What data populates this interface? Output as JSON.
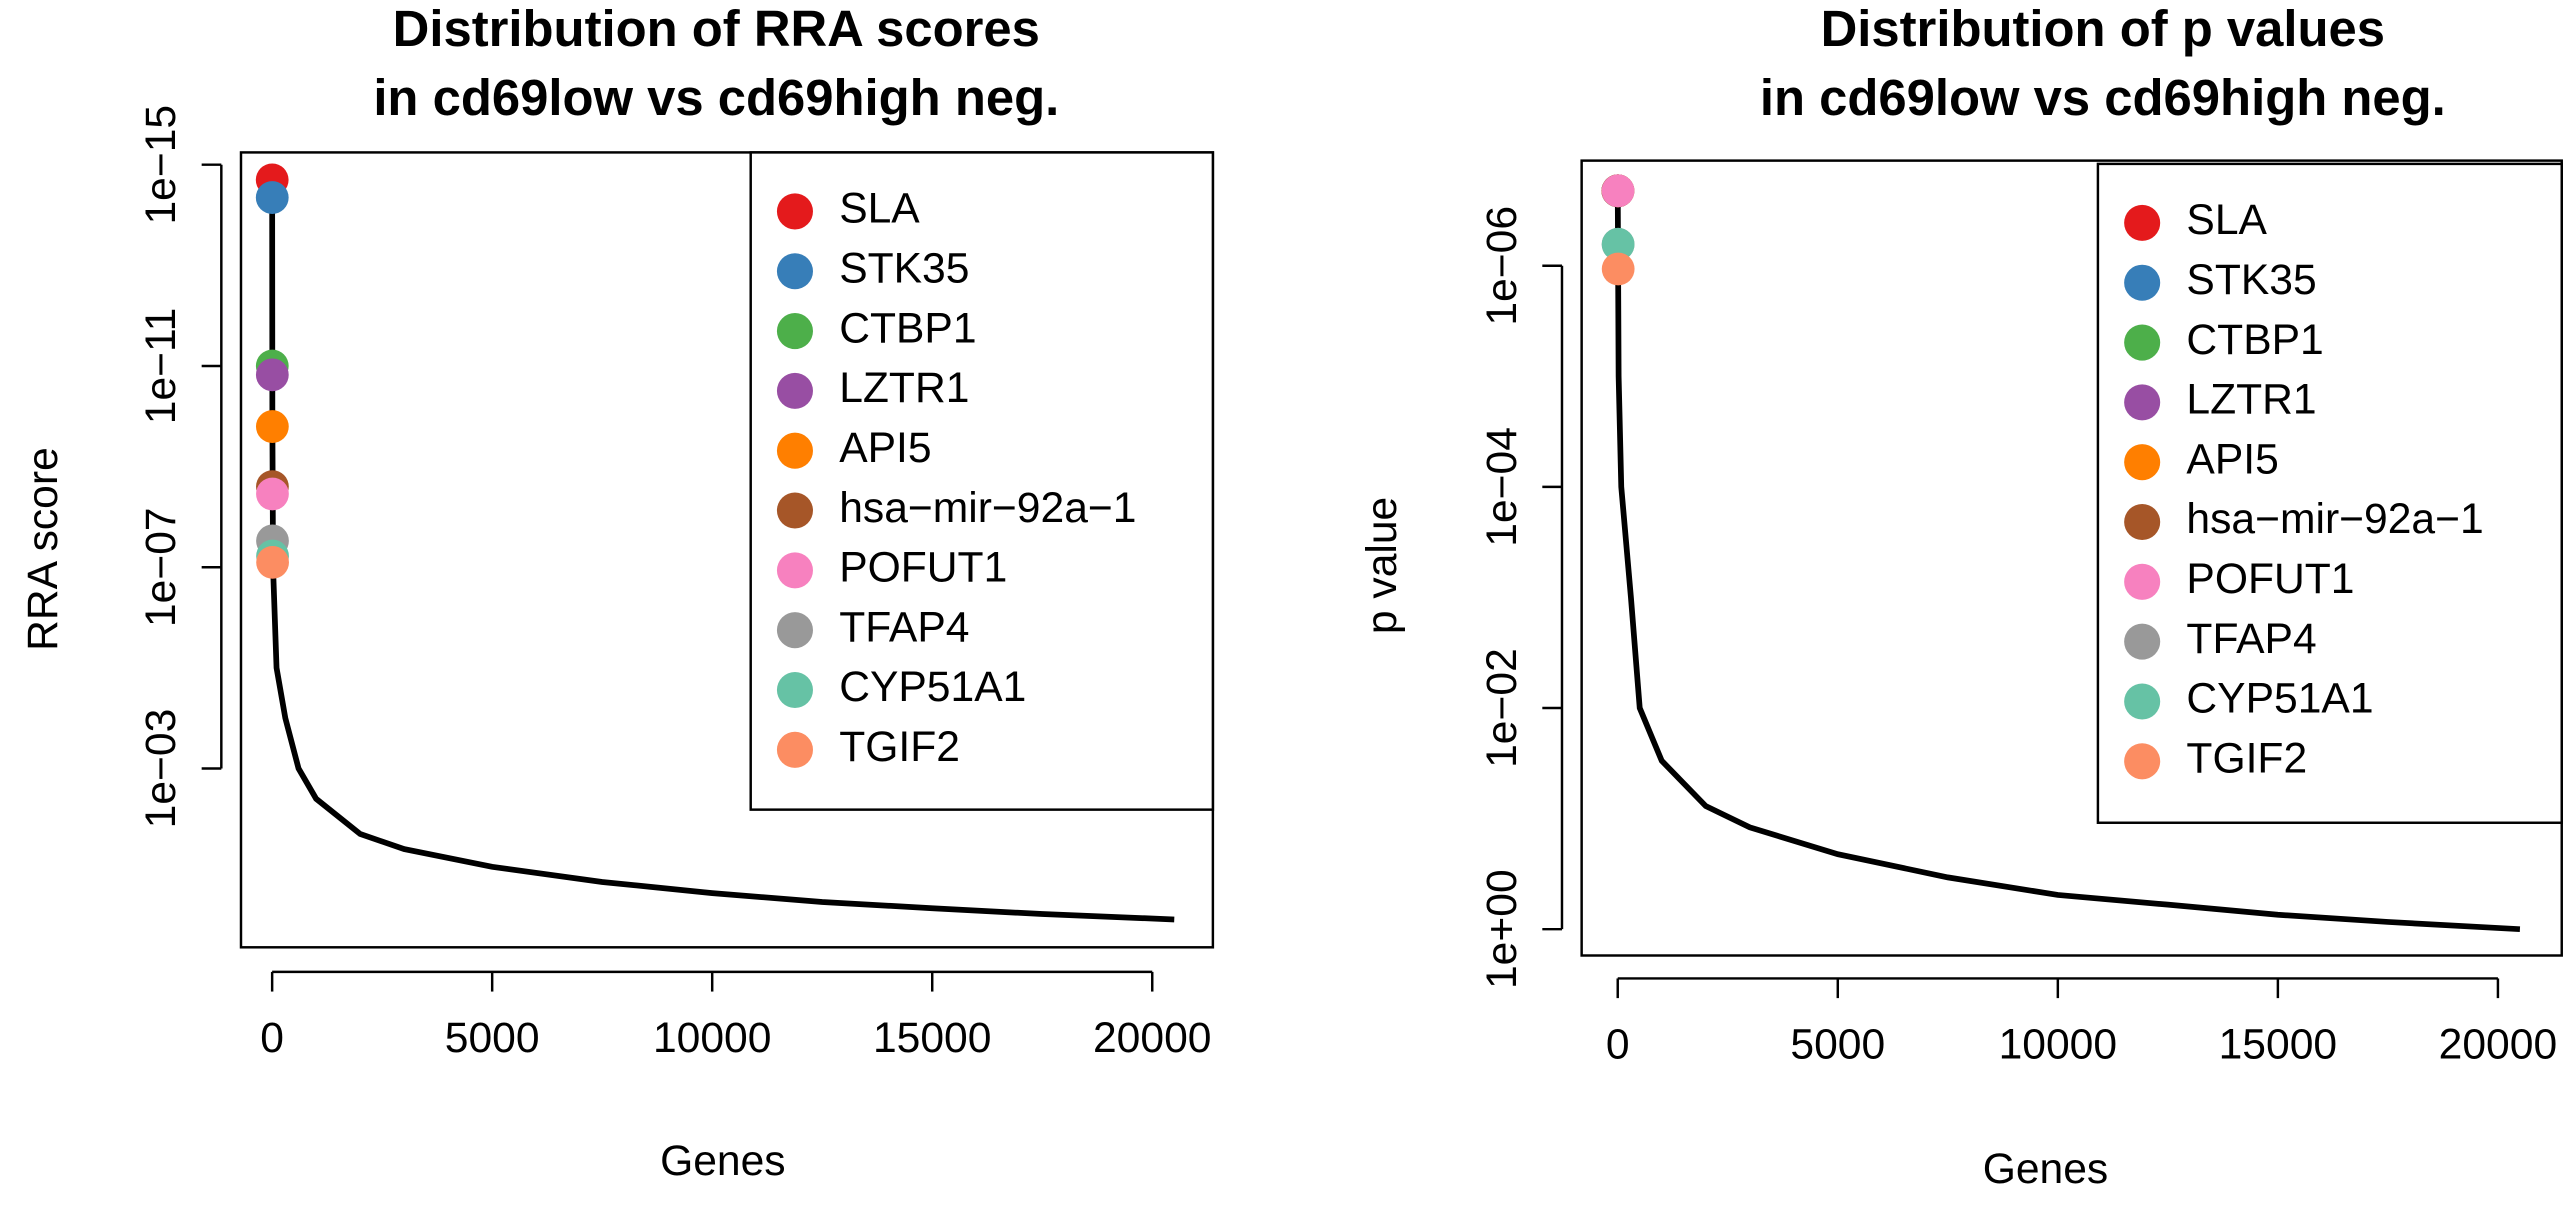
{
  "chart_data": [
    {
      "type": "line",
      "title": [
        "Distribution of RRA scores",
        "in cd69low vs cd69high neg."
      ],
      "x_label": "Genes",
      "y_label": "RRA score",
      "yscale": "log",
      "xlim": [
        -708,
        21378
      ],
      "ylim": [
        3.58,
        5.7e-16
      ],
      "xticks": [
        0,
        5000,
        10000,
        15000,
        20000
      ],
      "yticks": [
        {
          "value": 1e-15,
          "label": "1e−15"
        },
        {
          "value": 1e-11,
          "label": "1e−11"
        },
        {
          "value": 1e-07,
          "label": "1e−07"
        },
        {
          "value": 0.001,
          "label": "1e−03"
        }
      ],
      "curve": {
        "color": "#000000",
        "x": [
          0,
          5,
          20,
          100,
          300,
          600,
          1000,
          2000,
          3000,
          5000,
          7500,
          10000,
          12500,
          15000,
          17500,
          20500
        ],
        "values": [
          2e-15,
          1e-10,
          1e-07,
          1e-05,
          0.0001,
          0.001,
          0.004,
          0.02,
          0.04,
          0.09,
          0.18,
          0.3,
          0.45,
          0.6,
          0.78,
          1
        ]
      },
      "series": [
        {
          "name": "SLA",
          "color": "#E41A1C",
          "x": [
            1
          ],
          "values": [
            2e-15
          ]
        },
        {
          "name": "STK35",
          "color": "#377EB8",
          "x": [
            2
          ],
          "values": [
            4.5e-15
          ]
        },
        {
          "name": "CTBP1",
          "color": "#4DAF4A",
          "x": [
            3
          ],
          "values": [
            1e-11
          ]
        },
        {
          "name": "LZTR1",
          "color": "#984EA3",
          "x": [
            4
          ],
          "values": [
            1.5e-11
          ]
        },
        {
          "name": "API5",
          "color": "#FF7F00",
          "x": [
            5
          ],
          "values": [
            1.6e-10
          ]
        },
        {
          "name": "hsa−mir−92a−1",
          "color": "#A65628",
          "x": [
            6
          ],
          "values": [
            2.5e-09
          ]
        },
        {
          "name": "POFUT1",
          "color": "#F781BF",
          "x": [
            7
          ],
          "values": [
            3.5e-09
          ]
        },
        {
          "name": "TFAP4",
          "color": "#999999",
          "x": [
            8
          ],
          "values": [
            3e-08
          ]
        },
        {
          "name": "CYP51A1",
          "color": "#66C2A5",
          "x": [
            9
          ],
          "values": [
            6e-08
          ]
        },
        {
          "name": "TGIF2",
          "color": "#FC8D62",
          "x": [
            10
          ],
          "values": [
            8e-08
          ]
        }
      ]
    },
    {
      "type": "line",
      "title": [
        "Distribution of p values",
        "in cd69low vs cd69high neg."
      ],
      "x_label": "Genes",
      "y_label": "p value",
      "yscale": "log",
      "xlim": [
        -820,
        21450
      ],
      "ylim": [
        1.73,
        1.12e-07
      ],
      "xticks": [
        0,
        5000,
        10000,
        15000,
        20000
      ],
      "yticks": [
        {
          "value": 1e-06,
          "label": "1e−06"
        },
        {
          "value": 0.0001,
          "label": "1e−04"
        },
        {
          "value": 0.01,
          "label": "1e−02"
        },
        {
          "value": 1,
          "label": "1e+00"
        }
      ],
      "curve": {
        "color": "#000000",
        "x": [
          0,
          20,
          80,
          300,
          500,
          1000,
          2000,
          3000,
          5000,
          7500,
          10000,
          12500,
          15000,
          17500,
          20500
        ],
        "values": [
          2.1e-07,
          1e-05,
          0.0001,
          0.001,
          0.01,
          0.03,
          0.077,
          0.12,
          0.21,
          0.34,
          0.49,
          0.6,
          0.74,
          0.86,
          1
        ]
      },
      "series": [
        {
          "name": "SLA",
          "color": "#E41A1C",
          "x": [
            1
          ],
          "values": [
            2.1e-07
          ]
        },
        {
          "name": "STK35",
          "color": "#377EB8",
          "x": [
            2
          ],
          "values": [
            2.1e-07
          ]
        },
        {
          "name": "CTBP1",
          "color": "#4DAF4A",
          "x": [
            3
          ],
          "values": [
            2.1e-07
          ]
        },
        {
          "name": "LZTR1",
          "color": "#984EA3",
          "x": [
            4
          ],
          "values": [
            2.1e-07
          ]
        },
        {
          "name": "API5",
          "color": "#FF7F00",
          "x": [
            5
          ],
          "values": [
            2.1e-07
          ]
        },
        {
          "name": "hsa−mir−92a−1",
          "color": "#A65628",
          "x": [
            6
          ],
          "values": [
            2.1e-07
          ]
        },
        {
          "name": "POFUT1",
          "color": "#F781BF",
          "x": [
            7
          ],
          "values": [
            2.1e-07
          ]
        },
        {
          "name": "TFAP4",
          "color": "#999999",
          "x": [
            8
          ],
          "values": [
            6.4e-07
          ]
        },
        {
          "name": "CYP51A1",
          "color": "#66C2A5",
          "x": [
            9
          ],
          "values": [
            6.4e-07
          ]
        },
        {
          "name": "TGIF2",
          "color": "#FC8D62",
          "x": [
            10
          ],
          "values": [
            1.07e-06
          ]
        }
      ]
    }
  ]
}
